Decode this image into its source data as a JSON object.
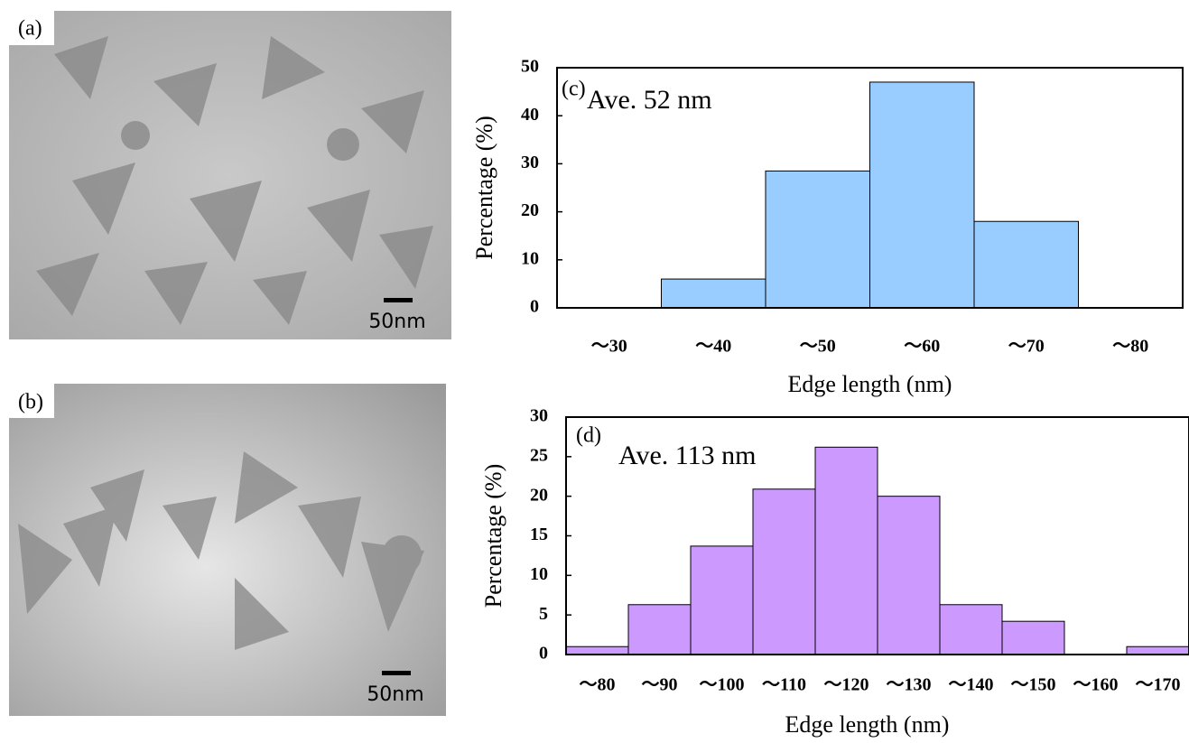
{
  "images": [
    {
      "label": "(a)",
      "scale_bar": "50nm"
    },
    {
      "label": "(b)",
      "scale_bar": "50nm"
    }
  ],
  "chart_data": [
    {
      "type": "bar",
      "panel_label": "(c)",
      "annotation": "Ave. 52 nm",
      "x_label": "Edge length (nm)",
      "y_label": "Percentage (%)",
      "categories": [
        "～30",
        "～40",
        "～50",
        "～60",
        "～70",
        "～80"
      ],
      "values": [
        0,
        6,
        28.5,
        47,
        18,
        0
      ],
      "color": "#99ccff",
      "ylim": [
        0,
        50
      ],
      "yticks": [
        0,
        10,
        20,
        30,
        40,
        50
      ],
      "grid": false
    },
    {
      "type": "bar",
      "panel_label": "(d)",
      "annotation": "Ave. 113 nm",
      "x_label": "Edge length (nm)",
      "y_label": "Percentage (%)",
      "categories": [
        "～80",
        "～90",
        "～100",
        "～110",
        "～120",
        "～130",
        "～140",
        "～150",
        "～160",
        "～170"
      ],
      "values": [
        1,
        6.3,
        13.7,
        20.9,
        26.2,
        20,
        6.3,
        4.2,
        0,
        1
      ],
      "color": "#cc99ff",
      "ylim": [
        0,
        30
      ],
      "yticks": [
        0,
        5,
        10,
        15,
        20,
        25,
        30
      ],
      "grid": false
    }
  ]
}
